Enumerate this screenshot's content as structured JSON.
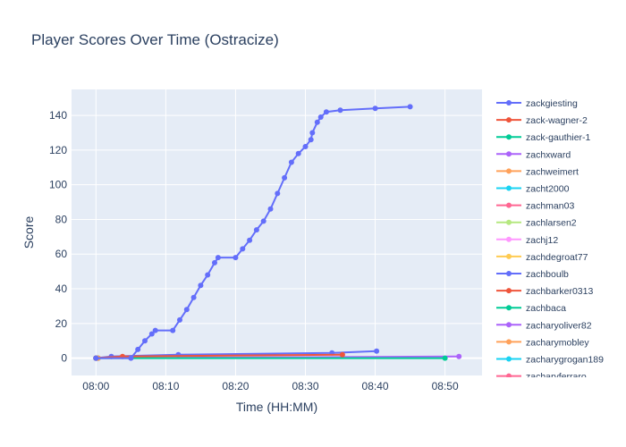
{
  "chart_data": {
    "type": "line",
    "title": "Player Scores Over Time (Ostracize)",
    "xlabel": "Time (HH:MM)",
    "ylabel": "Score",
    "xlim": [
      -3.5,
      55.3
    ],
    "ylim": [
      -10,
      155
    ],
    "x_ticks": [
      {
        "value": 0,
        "label": "08:00"
      },
      {
        "value": 10,
        "label": "08:10"
      },
      {
        "value": 20,
        "label": "08:20"
      },
      {
        "value": 30,
        "label": "08:30"
      },
      {
        "value": 40,
        "label": "08:40"
      },
      {
        "value": 50,
        "label": "08:50"
      }
    ],
    "y_ticks": [
      0,
      20,
      40,
      60,
      80,
      100,
      120,
      140
    ],
    "grid": true,
    "legend_position": "right",
    "series": [
      {
        "name": "zackgiesting",
        "color": "#636efa",
        "points": [
          [
            0,
            0
          ],
          [
            5,
            0
          ],
          [
            6,
            5
          ],
          [
            7,
            10
          ],
          [
            8,
            14
          ],
          [
            8.5,
            16
          ],
          [
            11,
            16
          ],
          [
            12,
            22
          ],
          [
            13,
            28
          ],
          [
            14,
            35
          ],
          [
            15,
            42
          ],
          [
            16,
            48
          ],
          [
            17,
            55
          ],
          [
            17.5,
            58
          ],
          [
            20,
            58
          ],
          [
            21,
            63
          ],
          [
            22,
            68
          ],
          [
            23,
            74
          ],
          [
            24,
            79
          ],
          [
            25,
            86
          ],
          [
            26,
            95
          ],
          [
            27,
            104
          ],
          [
            28,
            113
          ],
          [
            29,
            118
          ],
          [
            30,
            122
          ],
          [
            30.8,
            126
          ],
          [
            31,
            130
          ],
          [
            31.7,
            136
          ],
          [
            32.2,
            139
          ],
          [
            33,
            142
          ],
          [
            35,
            143
          ],
          [
            40,
            144
          ],
          [
            45,
            145
          ]
        ]
      },
      {
        "name": "zack-wagner-2",
        "color": "#ef553b",
        "points": [
          [
            0,
            0
          ],
          [
            3.8,
            1
          ],
          [
            35.3,
            2
          ]
        ]
      },
      {
        "name": "zack-gauthier-1",
        "color": "#00cc96",
        "points": [
          [
            0,
            0
          ],
          [
            50,
            0
          ]
        ]
      },
      {
        "name": "zachxward",
        "color": "#ab63fa",
        "points": [
          [
            0,
            0
          ],
          [
            52,
            1
          ]
        ]
      },
      {
        "name": "zachweimert",
        "color": "#ffa15a",
        "points": [
          [
            0,
            0
          ],
          [
            0.3,
            0
          ]
        ]
      },
      {
        "name": "zacht2000",
        "color": "#19d3f3",
        "points": [
          [
            0,
            0
          ],
          [
            0.3,
            0
          ]
        ]
      },
      {
        "name": "zachman03",
        "color": "#ff6692",
        "points": [
          [
            0,
            0
          ],
          [
            0.3,
            0
          ]
        ]
      },
      {
        "name": "zachlarsen2",
        "color": "#b6e880",
        "points": [
          [
            0,
            0
          ],
          [
            0.3,
            0
          ]
        ]
      },
      {
        "name": "zachj12",
        "color": "#ff97ff",
        "points": [
          [
            0,
            0
          ],
          [
            0.3,
            0
          ]
        ]
      },
      {
        "name": "zachdegroat77",
        "color": "#fecb52",
        "points": [
          [
            0,
            0
          ],
          [
            0.3,
            0
          ]
        ]
      },
      {
        "name": "zachboulb",
        "color": "#636efa",
        "points": [
          [
            0,
            0
          ],
          [
            2.2,
            1
          ],
          [
            11.8,
            2
          ],
          [
            33.8,
            3
          ],
          [
            40.2,
            4
          ]
        ]
      },
      {
        "name": "zachbarker0313",
        "color": "#ef553b",
        "points": [
          [
            0,
            0
          ],
          [
            0.3,
            0
          ]
        ]
      },
      {
        "name": "zachbaca",
        "color": "#00cc96",
        "points": [
          [
            0,
            0
          ],
          [
            0.3,
            0
          ]
        ]
      },
      {
        "name": "zacharyoliver82",
        "color": "#ab63fa",
        "points": [
          [
            0,
            0
          ],
          [
            0.3,
            0
          ]
        ]
      },
      {
        "name": "zacharymobley",
        "color": "#ffa15a",
        "points": [
          [
            0,
            0
          ],
          [
            0.3,
            0
          ]
        ]
      },
      {
        "name": "zacharygrogan189",
        "color": "#19d3f3",
        "points": [
          [
            0,
            0
          ],
          [
            0.3,
            0
          ]
        ]
      },
      {
        "name": "zacharyferraro",
        "color": "#ff6692",
        "points": [
          [
            0,
            0
          ],
          [
            0.3,
            0
          ]
        ]
      }
    ]
  }
}
